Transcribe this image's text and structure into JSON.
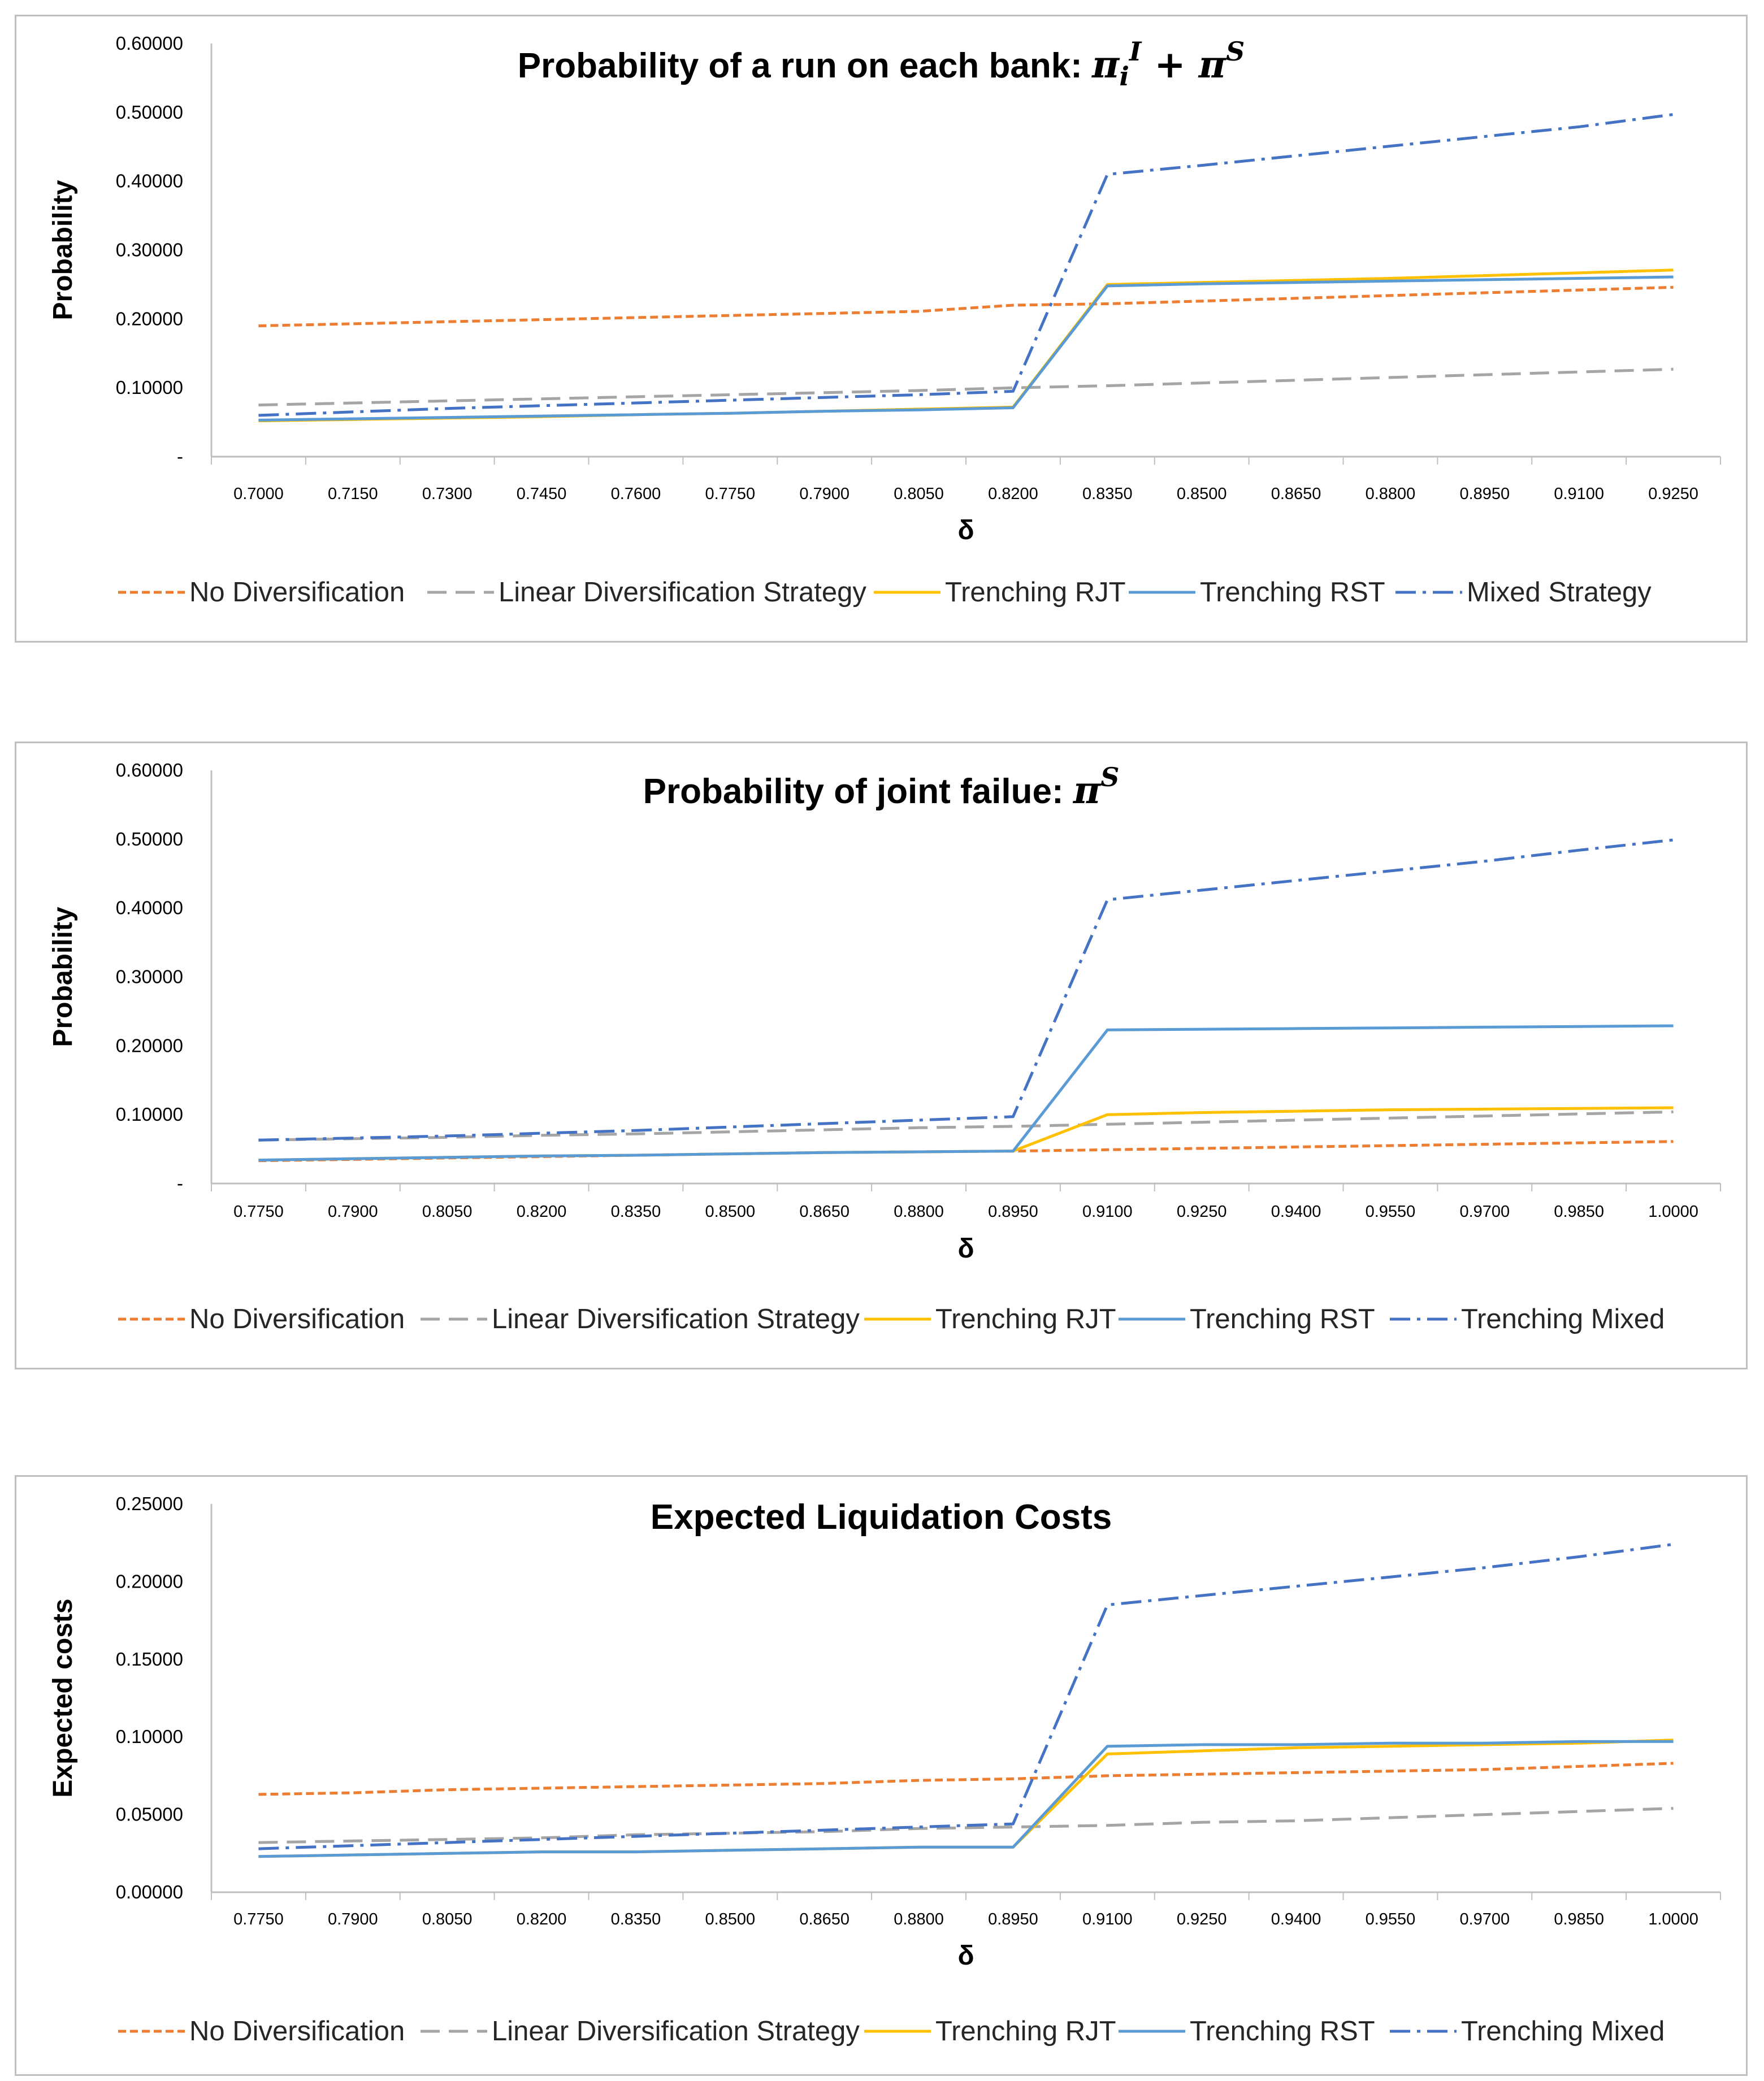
{
  "series_styles": {
    "No Diversification": {
      "color": "#ED7D31",
      "dash": "14,7"
    },
    "Linear Diversification Strategy": {
      "color": "#A5A5A5",
      "dash": "34,16"
    },
    "Trenching RJT": {
      "color": "#FFC000",
      "dash": ""
    },
    "Trenching RST": {
      "color": "#5B9BD5",
      "dash": ""
    },
    "Mixed Strategy": {
      "color": "#4472C4",
      "dash": "36,12,6,12"
    },
    "Trenching Mixed": {
      "color": "#4472C4",
      "dash": "36,12,6,12"
    }
  },
  "chart_data": [
    {
      "type": "line",
      "title": {
        "text": "Probability of a run on each bank: ",
        "math": "π",
        "sub": "i",
        "sup1": "I",
        "mid": " + π",
        "sup2": "S"
      },
      "xlabel": "δ",
      "ylabel": "Probability",
      "ylim": [
        0,
        0.6
      ],
      "yticks": [
        "-",
        "0.10000",
        "0.20000",
        "0.30000",
        "0.40000",
        "0.50000",
        "0.60000"
      ],
      "categories": [
        "0.7000",
        "0.7150",
        "0.7300",
        "0.7450",
        "0.7600",
        "0.7750",
        "0.7900",
        "0.8050",
        "0.8200",
        "0.8350",
        "0.8500",
        "0.8650",
        "0.8800",
        "0.8950",
        "0.9100",
        "0.9250"
      ],
      "series": [
        {
          "name": "No Diversification",
          "values": [
            0.19,
            0.193,
            0.196,
            0.199,
            0.202,
            0.205,
            0.208,
            0.211,
            0.22,
            0.222,
            0.226,
            0.23,
            0.234,
            0.238,
            0.242,
            0.246
          ]
        },
        {
          "name": "Linear Diversification Strategy",
          "values": [
            0.075,
            0.078,
            0.081,
            0.084,
            0.087,
            0.09,
            0.093,
            0.096,
            0.1,
            0.103,
            0.107,
            0.111,
            0.115,
            0.119,
            0.123,
            0.127
          ]
        },
        {
          "name": "Trenching RJT",
          "values": [
            0.052,
            0.054,
            0.056,
            0.058,
            0.061,
            0.063,
            0.066,
            0.069,
            0.072,
            0.25,
            0.253,
            0.256,
            0.259,
            0.263,
            0.267,
            0.271
          ]
        },
        {
          "name": "Trenching RST",
          "values": [
            0.053,
            0.055,
            0.057,
            0.059,
            0.061,
            0.063,
            0.066,
            0.068,
            0.071,
            0.248,
            0.251,
            0.253,
            0.255,
            0.257,
            0.259,
            0.261
          ]
        },
        {
          "name": "Mixed Strategy",
          "values": [
            0.06,
            0.065,
            0.07,
            0.074,
            0.078,
            0.082,
            0.086,
            0.09,
            0.095,
            0.41,
            0.423,
            0.437,
            0.451,
            0.465,
            0.479,
            0.497
          ]
        }
      ],
      "legend": [
        "No Diversification",
        "Linear Diversification Strategy",
        "Trenching RJT",
        "Trenching RST",
        "Mixed Strategy"
      ]
    },
    {
      "type": "line",
      "title": {
        "text": "Probability of joint failue: ",
        "math": "π",
        "sup": "S"
      },
      "xlabel": "δ",
      "ylabel": "Probability",
      "ylim": [
        0,
        0.6
      ],
      "yticks": [
        "-",
        "0.10000",
        "0.20000",
        "0.30000",
        "0.40000",
        "0.50000",
        "0.60000"
      ],
      "categories": [
        "0.7750",
        "0.7900",
        "0.8050",
        "0.8200",
        "0.8350",
        "0.8500",
        "0.8650",
        "0.8800",
        "0.8950",
        "0.9100",
        "0.9250",
        "0.9400",
        "0.9550",
        "0.9700",
        "0.9850",
        "1.0000"
      ],
      "series": [
        {
          "name": "No Diversification",
          "values": [
            0.033,
            0.035,
            0.037,
            0.039,
            0.041,
            0.043,
            0.045,
            0.046,
            0.047,
            0.049,
            0.051,
            0.053,
            0.055,
            0.057,
            0.059,
            0.061
          ]
        },
        {
          "name": "Linear Diversification Strategy",
          "values": [
            0.063,
            0.065,
            0.067,
            0.07,
            0.072,
            0.075,
            0.078,
            0.081,
            0.083,
            0.086,
            0.089,
            0.092,
            0.095,
            0.098,
            0.101,
            0.104
          ]
        },
        {
          "name": "Trenching RJT",
          "values": [
            0.034,
            0.036,
            0.038,
            0.04,
            0.041,
            0.043,
            0.045,
            0.046,
            0.047,
            0.1,
            0.103,
            0.105,
            0.107,
            0.108,
            0.109,
            0.11
          ]
        },
        {
          "name": "Trenching RST",
          "values": [
            0.034,
            0.036,
            0.038,
            0.04,
            0.041,
            0.043,
            0.045,
            0.046,
            0.047,
            0.223,
            0.224,
            0.225,
            0.226,
            0.227,
            0.228,
            0.229
          ]
        },
        {
          "name": "Trenching Mixed",
          "values": [
            0.063,
            0.066,
            0.069,
            0.073,
            0.077,
            0.082,
            0.087,
            0.092,
            0.097,
            0.412,
            0.426,
            0.44,
            0.454,
            0.468,
            0.484,
            0.499
          ]
        }
      ],
      "legend": [
        "No Diversification",
        "Linear Diversification Strategy",
        "Trenching RJT",
        "Trenching RST",
        "Trenching Mixed"
      ]
    },
    {
      "type": "line",
      "title": {
        "text": "Expected Liquidation Costs"
      },
      "xlabel": "δ",
      "ylabel": "Expected costs",
      "ylim": [
        0,
        0.25
      ],
      "yticks": [
        "0.00000",
        "0.05000",
        "0.10000",
        "0.15000",
        "0.20000",
        "0.25000"
      ],
      "categories": [
        "0.7750",
        "0.7900",
        "0.8050",
        "0.8200",
        "0.8350",
        "0.8500",
        "0.8650",
        "0.8800",
        "0.8950",
        "0.9100",
        "0.9250",
        "0.9400",
        "0.9550",
        "0.9700",
        "0.9850",
        "1.0000"
      ],
      "series": [
        {
          "name": "No Diversification",
          "values": [
            0.063,
            0.064,
            0.066,
            0.067,
            0.068,
            0.069,
            0.07,
            0.072,
            0.073,
            0.075,
            0.076,
            0.077,
            0.078,
            0.079,
            0.081,
            0.083
          ]
        },
        {
          "name": "Linear Diversification Strategy",
          "values": [
            0.032,
            0.033,
            0.034,
            0.035,
            0.037,
            0.038,
            0.039,
            0.041,
            0.042,
            0.043,
            0.045,
            0.046,
            0.048,
            0.05,
            0.052,
            0.054
          ]
        },
        {
          "name": "Trenching RJT",
          "values": [
            0.023,
            0.024,
            0.025,
            0.026,
            0.026,
            0.027,
            0.028,
            0.029,
            0.029,
            0.089,
            0.091,
            0.093,
            0.094,
            0.095,
            0.096,
            0.098
          ]
        },
        {
          "name": "Trenching RST",
          "values": [
            0.023,
            0.024,
            0.025,
            0.026,
            0.026,
            0.027,
            0.028,
            0.029,
            0.029,
            0.094,
            0.095,
            0.095,
            0.096,
            0.096,
            0.097,
            0.097
          ]
        },
        {
          "name": "Trenching Mixed",
          "values": [
            0.028,
            0.03,
            0.032,
            0.034,
            0.036,
            0.038,
            0.04,
            0.042,
            0.044,
            0.185,
            0.191,
            0.197,
            0.203,
            0.209,
            0.216,
            0.224
          ]
        }
      ],
      "legend": [
        "No Diversification",
        "Linear Diversification Strategy",
        "Trenching RJT",
        "Trenching RST",
        "Trenching Mixed"
      ]
    }
  ]
}
